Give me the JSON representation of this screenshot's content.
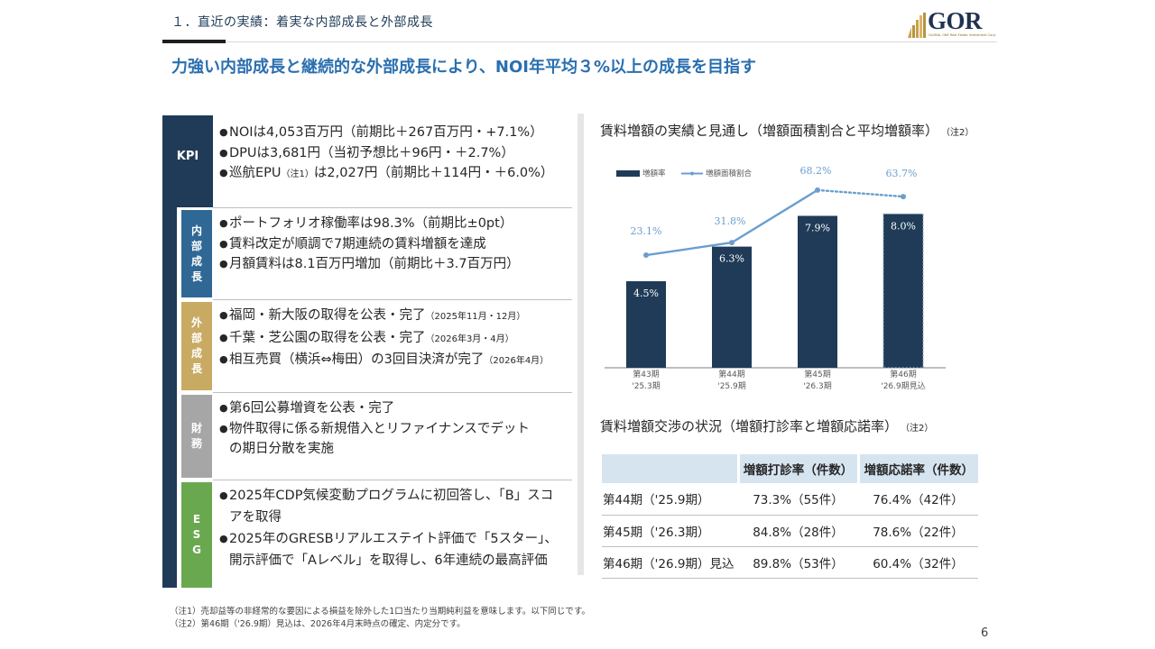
{
  "header": {
    "section_title": "１．直近の実績：着実な内部成長と外部成長",
    "headline": "力強い内部成長と継続的な外部成長により、NOI年平均３%以上の成長を目指す",
    "logo_text": "GOR",
    "logo_subtext": "GLOBAL ONE Real Estate Investment Corp."
  },
  "left_panel": {
    "kpi": {
      "label": "KPI",
      "items": [
        {
          "text": "NOIは4,053百万円（前期比＋267百万円・+7.1%）"
        },
        {
          "text": "DPUは3,681円（当初予想比＋96円・＋2.7%）"
        },
        {
          "text_a": "巡航EPU",
          "note": "（注1）",
          "text_b": "は2,027円（前期比＋114円・＋6.0%）"
        }
      ]
    },
    "naibu": {
      "label": [
        "内",
        "部",
        "成",
        "長"
      ],
      "items": [
        "ポートフォリオ稼働率は98.3%（前期比±0pt）",
        "賃料改定が順調で7期連続の賃料増額を達成",
        "月額賃料は8.1百万円増加（前期比＋3.7百万円）"
      ]
    },
    "gaibu": {
      "label": [
        "外",
        "部",
        "成",
        "長"
      ],
      "items": [
        {
          "text": "福岡・新大阪の取得を公表・完了",
          "note": "（2025年11月・12月）"
        },
        {
          "text": "千葉・芝公園の取得を公表・完了",
          "note": "（2026年3月・4月）"
        },
        {
          "text": "相互売買（横浜⇔梅田）の3回目決済が完了",
          "note": "（2026年4月）"
        }
      ]
    },
    "zaimu": {
      "label": [
        "財",
        "務"
      ],
      "items": [
        "第6回公募増資を公表・完了",
        "物件取得に係る新規借入とリファイナンスでデットの期日分散を実施"
      ]
    },
    "esg": {
      "label": [
        "E",
        "S",
        "G"
      ],
      "items": [
        "2025年CDP気候変動プログラムに初回答し、「B」スコアを取得",
        "2025年のGRESBリアルエステイト評価で「5スター」、開示評価で「Aレベル」を取得し、6年連続の最高評価"
      ]
    }
  },
  "chart_section": {
    "title": "賃料増額の実績と見通し（増額面積割合と平均増額率）",
    "note": "（注2）"
  },
  "chart_data": {
    "type": "bar",
    "categories": [
      [
        "第43期",
        "'25.3期"
      ],
      [
        "第44期",
        "'25.9期"
      ],
      [
        "第45期",
        "'26.3期"
      ],
      [
        "第46期",
        "'26.9期見込"
      ]
    ],
    "series": [
      {
        "name": "増額率",
        "type": "bar",
        "values": [
          4.5,
          6.3,
          7.9,
          8.0
        ],
        "labels": [
          "4.5%",
          "6.3%",
          "7.9%",
          "8.0%"
        ],
        "color": "#1f3b57",
        "last_is_forecast": true
      },
      {
        "name": "増額面積割合",
        "type": "line",
        "values": [
          23.1,
          31.8,
          68.2,
          63.7
        ],
        "labels": [
          "23.1%",
          "31.8%",
          "68.2%",
          "63.7%"
        ],
        "color": "#6b9ecf",
        "last_segment_dotted": true
      }
    ],
    "bar_ylim": [
      0,
      10.5
    ],
    "line_ylim": [
      -55,
      85
    ],
    "legend": "top-left"
  },
  "table_section": {
    "title": "賃料増額交渉の状況（増額打診率と増額応諾率）",
    "note": "（注2）",
    "headers": [
      "",
      "増額打診率（件数）",
      "増額応諾率（件数）"
    ],
    "rows": [
      [
        "第44期（'25.9期）",
        "73.3%（55件）",
        "76.4%（42件）"
      ],
      [
        "第45期（'26.3期）",
        "84.8%（28件）",
        "78.6%（22件）"
      ],
      [
        "第46期（'26.9期）見込",
        "89.8%（53件）",
        "60.4%（32件）"
      ]
    ]
  },
  "footnotes": [
    "（注1）売却益等の非経常的な要因による損益を除外した1口当たり当期純利益を意味します。以下同じです。",
    "（注2）第46期（'26.9期）見込は、2026年4月末時点の確定、内定分です。"
  ],
  "page_number": "6",
  "colors": {
    "navy": "#1f3b57",
    "naibu": "#2f6895",
    "gaibu": "#c9aa63",
    "zaimu": "#a6a6a6",
    "esg": "#6aa84f",
    "headline": "#2a6fb0",
    "line": "#6b9ecf",
    "table_header": "#d6e4f0"
  }
}
